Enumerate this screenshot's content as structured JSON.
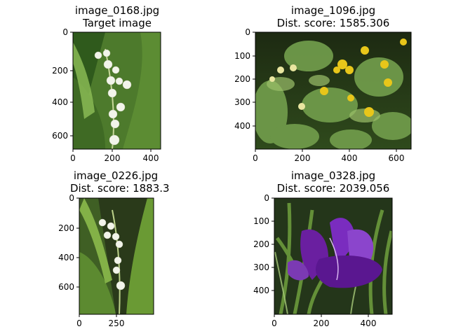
{
  "panels": [
    {
      "filename": "image_0168.jpg",
      "subtitle": "Target image",
      "xticks": [
        "0",
        "200",
        "400"
      ],
      "yticks": [
        "0",
        "200",
        "400",
        "600"
      ]
    },
    {
      "filename": "image_1096.jpg",
      "subtitle": "Dist. score: 1585.306",
      "xticks": [
        "0",
        "200",
        "400",
        "600"
      ],
      "yticks": [
        "0",
        "100",
        "200",
        "300",
        "400"
      ]
    },
    {
      "filename": "image_0226.jpg",
      "subtitle": "Dist. score: 1883.3",
      "xticks": [
        "0",
        "250"
      ],
      "yticks": [
        "0",
        "200",
        "400",
        "600"
      ]
    },
    {
      "filename": "image_0328.jpg",
      "subtitle": "Dist. score: 2039.056",
      "xticks": [
        "0",
        "200",
        "400"
      ],
      "yticks": [
        "0",
        "100",
        "200",
        "300",
        "400"
      ]
    }
  ],
  "colors": {
    "axis": "#000000",
    "leaf_dark": "#3f6f2a",
    "leaf_light": "#7fae4a",
    "bell_white": "#f2f4ea",
    "primrose_yellow": "#e8c61a",
    "crocus_purple": "#6a1fa0"
  }
}
